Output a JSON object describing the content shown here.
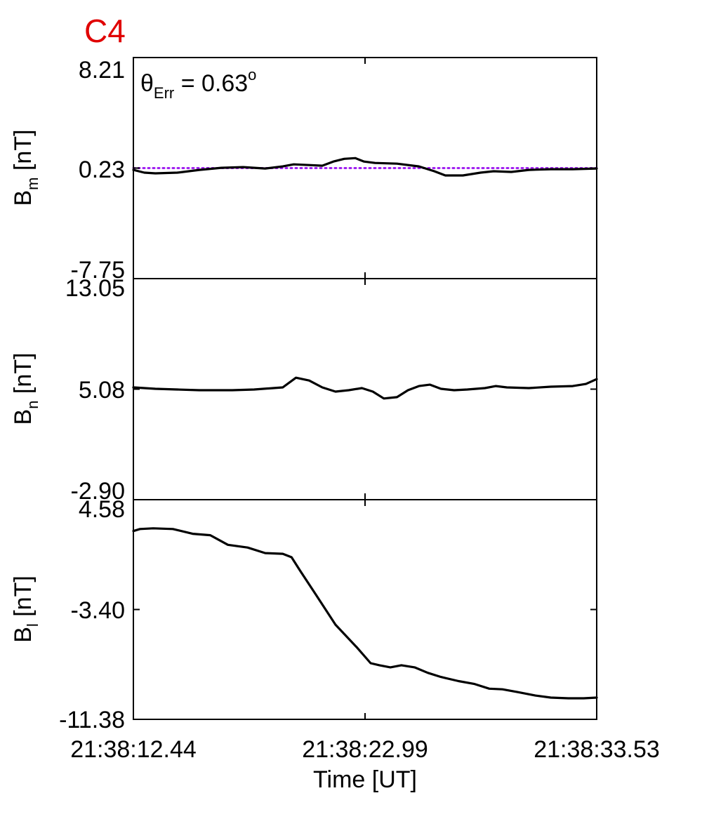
{
  "figure": {
    "spacecraft_label": "C4",
    "spacecraft_color": "#e00000",
    "annotation_prefix": "θ",
    "annotation_sub": "Err",
    "annotation_value": " =  0.63",
    "annotation_sup": "o",
    "xlabel": "Time [UT]"
  },
  "chart_data": {
    "type": "line",
    "x_ticks": [
      "21:38:12.44",
      "21:38:22.99",
      "21:38:33.53"
    ],
    "x_range_seconds": [
      0,
      21.09
    ],
    "panels": [
      {
        "ylabel_main": "B",
        "ylabel_sub": "m",
        "ylabel_unit": " [nT]",
        "y_ticks": [
          "8.21",
          "0.23",
          "-7.75"
        ],
        "ylim": [
          -7.75,
          8.21
        ],
        "reference_line": {
          "value": 0.23,
          "color": "#a020f0",
          "style": "dotted"
        },
        "series": [
          {
            "color": "#000000",
            "x": [
              0,
              0.5,
              1.0,
              2.0,
              3.0,
              4.0,
              5.0,
              6.0,
              6.8,
              7.3,
              8.0,
              8.6,
              9.1,
              9.6,
              10.1,
              10.5,
              11.0,
              12.0,
              13.0,
              13.7,
              14.2,
              15.0,
              15.8,
              16.4,
              17.2,
              18.0,
              19.0,
              20.0,
              21.09
            ],
            "y": [
              0.1,
              -0.1,
              -0.15,
              -0.1,
              0.1,
              0.25,
              0.3,
              0.2,
              0.35,
              0.5,
              0.45,
              0.4,
              0.7,
              0.9,
              0.95,
              0.7,
              0.6,
              0.55,
              0.35,
              0.0,
              -0.3,
              -0.3,
              -0.1,
              0.0,
              -0.05,
              0.1,
              0.15,
              0.15,
              0.2
            ]
          }
        ]
      },
      {
        "ylabel_main": "B",
        "ylabel_sub": "n",
        "ylabel_unit": " [nT]",
        "y_ticks": [
          "13.05",
          "5.08",
          "-2.90"
        ],
        "ylim": [
          -2.9,
          13.05
        ],
        "series": [
          {
            "color": "#000000",
            "x": [
              0,
              1.0,
              2.0,
              3.0,
              4.5,
              5.5,
              6.8,
              7.4,
              8.0,
              8.6,
              9.2,
              9.8,
              10.4,
              10.9,
              11.4,
              12.0,
              12.5,
              13.0,
              13.5,
              14.0,
              14.6,
              15.2,
              16.0,
              16.5,
              17.0,
              18.0,
              19.0,
              20.0,
              20.6,
              21.09
            ],
            "y": [
              5.2,
              5.1,
              5.05,
              5.0,
              5.0,
              5.05,
              5.2,
              5.9,
              5.7,
              5.2,
              4.9,
              5.0,
              5.15,
              4.9,
              4.4,
              4.5,
              5.0,
              5.3,
              5.4,
              5.1,
              5.0,
              5.05,
              5.15,
              5.3,
              5.2,
              5.15,
              5.25,
              5.3,
              5.45,
              5.8
            ]
          }
        ]
      },
      {
        "ylabel_main": "B",
        "ylabel_sub": "l",
        "ylabel_unit": " [nT]",
        "y_ticks": [
          "4.58",
          "-3.40",
          "-11.38"
        ],
        "ylim": [
          -11.38,
          4.58
        ],
        "series": [
          {
            "color": "#000000",
            "x": [
              0,
              0.3,
              0.9,
              1.8,
              2.7,
              3.5,
              4.3,
              5.2,
              6.0,
              6.8,
              7.2,
              7.6,
              8.3,
              9.2,
              10.2,
              10.8,
              11.2,
              11.7,
              12.2,
              12.8,
              13.4,
              14.0,
              14.8,
              15.5,
              16.2,
              16.8,
              17.5,
              18.3,
              19.0,
              19.8,
              20.5,
              21.09
            ],
            "y": [
              2.3,
              2.45,
              2.5,
              2.45,
              2.1,
              2.0,
              1.3,
              1.1,
              0.7,
              0.65,
              0.4,
              -0.6,
              -2.3,
              -4.5,
              -6.2,
              -7.3,
              -7.45,
              -7.6,
              -7.45,
              -7.6,
              -8.0,
              -8.3,
              -8.6,
              -8.8,
              -9.15,
              -9.2,
              -9.4,
              -9.65,
              -9.8,
              -9.85,
              -9.85,
              -9.8
            ]
          }
        ]
      }
    ]
  }
}
